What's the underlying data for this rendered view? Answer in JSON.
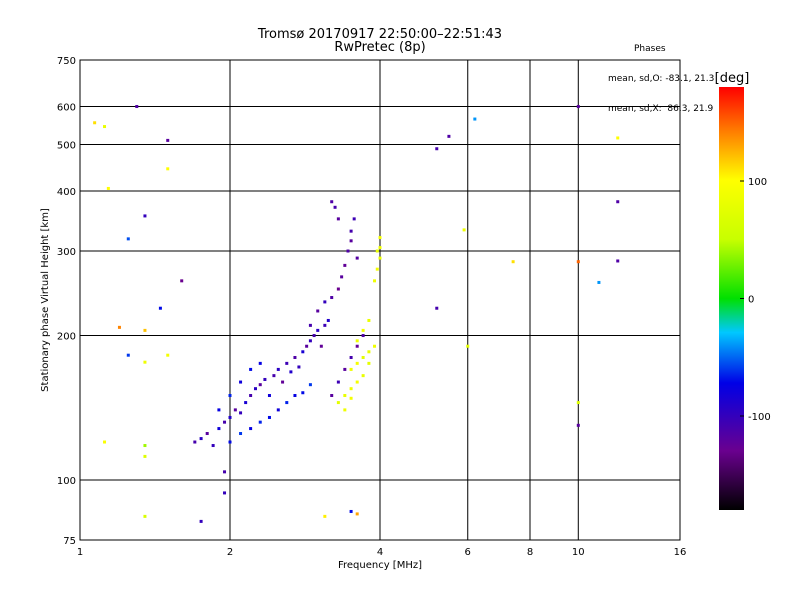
{
  "header": {
    "title_line1": "Tromsø 20170917 22:50:00–22:51:43",
    "title_line2": "RwPretec (8p)"
  },
  "stats": {
    "heading": "Phases",
    "line_o": "mean, sd,O: -83.1, 21.3",
    "line_x": "mean, sd,X:  86.3, 21.9"
  },
  "colorbar": {
    "label": "[deg]",
    "ticks": [
      "100",
      "0",
      "-100"
    ],
    "tick_values": [
      100,
      0,
      -100
    ],
    "range": [
      -180,
      180
    ]
  },
  "chart_data": {
    "type": "scatter",
    "xlabel": "Frequency [MHz]",
    "ylabel": "Stationary phase Virtual Height [km]",
    "xscale": "log",
    "yscale": "log",
    "xlim": [
      1,
      16
    ],
    "ylim": [
      75,
      750
    ],
    "x_ticks": [
      1,
      2,
      4,
      6,
      8,
      10,
      16
    ],
    "x_tick_labels": [
      "1",
      "2",
      "4",
      "6",
      "8",
      "10",
      "16"
    ],
    "y_ticks": [
      75,
      100,
      200,
      300,
      400,
      500,
      600,
      750
    ],
    "y_tick_labels": [
      "75",
      "100",
      "200",
      "300",
      "400",
      "500",
      "600",
      "750"
    ],
    "grid": true,
    "color_variable": "phase [deg]",
    "points": [
      [
        1.7,
        120,
        -110
      ],
      [
        1.75,
        122,
        -95
      ],
      [
        1.8,
        125,
        -120
      ],
      [
        1.85,
        118,
        -100
      ],
      [
        1.9,
        128,
        -80
      ],
      [
        1.95,
        132,
        -110
      ],
      [
        2.0,
        135,
        -90
      ],
      [
        2.05,
        140,
        -120
      ],
      [
        2.1,
        138,
        -100
      ],
      [
        2.15,
        145,
        -85
      ],
      [
        2.2,
        150,
        -110
      ],
      [
        2.25,
        155,
        -95
      ],
      [
        2.3,
        158,
        -120
      ],
      [
        2.35,
        162,
        -100
      ],
      [
        2.4,
        150,
        -80
      ],
      [
        2.45,
        165,
        -110
      ],
      [
        2.5,
        170,
        -95
      ],
      [
        2.55,
        160,
        -125
      ],
      [
        2.6,
        175,
        -105
      ],
      [
        2.65,
        168,
        -90
      ],
      [
        2.7,
        180,
        -115
      ],
      [
        2.75,
        172,
        -100
      ],
      [
        2.8,
        185,
        -85
      ],
      [
        2.85,
        190,
        -120
      ],
      [
        2.9,
        195,
        -100
      ],
      [
        2.95,
        200,
        -110
      ],
      [
        3.0,
        205,
        -95
      ],
      [
        3.05,
        190,
        -125
      ],
      [
        3.1,
        210,
        -105
      ],
      [
        3.15,
        215,
        -90
      ],
      [
        2.0,
        120,
        -70
      ],
      [
        2.1,
        125,
        -60
      ],
      [
        2.2,
        128,
        -75
      ],
      [
        2.3,
        132,
        -65
      ],
      [
        2.4,
        135,
        -70
      ],
      [
        2.5,
        140,
        -80
      ],
      [
        2.6,
        145,
        -65
      ],
      [
        2.7,
        150,
        -75
      ],
      [
        2.8,
        152,
        -70
      ],
      [
        2.9,
        158,
        -60
      ],
      [
        1.9,
        140,
        -75
      ],
      [
        2.0,
        150,
        -65
      ],
      [
        2.1,
        160,
        -80
      ],
      [
        2.2,
        170,
        -70
      ],
      [
        2.3,
        175,
        -75
      ],
      [
        2.9,
        210,
        -110
      ],
      [
        3.0,
        225,
        -120
      ],
      [
        3.1,
        235,
        -100
      ],
      [
        3.2,
        240,
        -115
      ],
      [
        3.3,
        250,
        -130
      ],
      [
        3.35,
        265,
        -120
      ],
      [
        3.4,
        280,
        -125
      ],
      [
        3.45,
        300,
        -115
      ],
      [
        3.5,
        315,
        -120
      ],
      [
        3.5,
        330,
        -110
      ],
      [
        3.3,
        350,
        -120
      ],
      [
        3.2,
        380,
        -115
      ],
      [
        3.25,
        370,
        -110
      ],
      [
        3.55,
        350,
        -105
      ],
      [
        3.6,
        290,
        -118
      ],
      [
        3.4,
        170,
        -120
      ],
      [
        3.5,
        180,
        -110
      ],
      [
        3.6,
        190,
        -125
      ],
      [
        3.7,
        200,
        -115
      ],
      [
        3.3,
        160,
        -105
      ],
      [
        3.2,
        150,
        -120
      ],
      [
        3.3,
        145,
        75
      ],
      [
        3.4,
        150,
        80
      ],
      [
        3.5,
        155,
        85
      ],
      [
        3.6,
        160,
        90
      ],
      [
        3.7,
        165,
        80
      ],
      [
        3.5,
        170,
        85
      ],
      [
        3.6,
        175,
        90
      ],
      [
        3.7,
        180,
        75
      ],
      [
        3.8,
        185,
        80
      ],
      [
        3.6,
        195,
        85
      ],
      [
        3.7,
        205,
        90
      ],
      [
        3.8,
        215,
        80
      ],
      [
        3.4,
        140,
        85
      ],
      [
        3.5,
        148,
        90
      ],
      [
        3.9,
        260,
        85
      ],
      [
        3.95,
        275,
        90
      ],
      [
        4.0,
        290,
        80
      ],
      [
        4.0,
        305,
        85
      ],
      [
        4.0,
        320,
        90
      ],
      [
        3.95,
        300,
        80
      ],
      [
        3.8,
        175,
        75
      ],
      [
        3.9,
        190,
        85
      ],
      [
        1.3,
        600,
        -115
      ],
      [
        1.5,
        510,
        -120
      ],
      [
        1.35,
        355,
        -100
      ],
      [
        1.25,
        318,
        -55
      ],
      [
        1.6,
        260,
        -130
      ],
      [
        1.45,
        228,
        -70
      ],
      [
        1.25,
        182,
        -60
      ],
      [
        1.5,
        182,
        90
      ],
      [
        1.35,
        176,
        85
      ],
      [
        1.12,
        545,
        80
      ],
      [
        1.14,
        405,
        100
      ],
      [
        1.07,
        555,
        110
      ],
      [
        1.2,
        208,
        140
      ],
      [
        1.35,
        205,
        120
      ],
      [
        1.35,
        118,
        40
      ],
      [
        1.12,
        120,
        95
      ],
      [
        1.35,
        112,
        70
      ],
      [
        1.35,
        84,
        65
      ],
      [
        1.95,
        104,
        -110
      ],
      [
        1.95,
        94,
        -100
      ],
      [
        1.75,
        82,
        -100
      ],
      [
        3.1,
        84,
        105
      ],
      [
        3.5,
        86,
        -70
      ],
      [
        3.6,
        85,
        130
      ],
      [
        5.2,
        490,
        -110
      ],
      [
        5.5,
        520,
        -115
      ],
      [
        6.2,
        565,
        -40
      ],
      [
        5.2,
        228,
        -110
      ],
      [
        5.9,
        332,
        85
      ],
      [
        6.0,
        190,
        75
      ],
      [
        7.4,
        285,
        110
      ],
      [
        10,
        285,
        150
      ],
      [
        10,
        600,
        -120
      ],
      [
        10,
        145,
        70
      ],
      [
        10,
        130,
        -120
      ],
      [
        11,
        258,
        -40
      ],
      [
        12,
        380,
        -115
      ],
      [
        12,
        286,
        -115
      ],
      [
        12,
        516,
        100
      ],
      [
        1.5,
        445,
        100
      ]
    ]
  }
}
